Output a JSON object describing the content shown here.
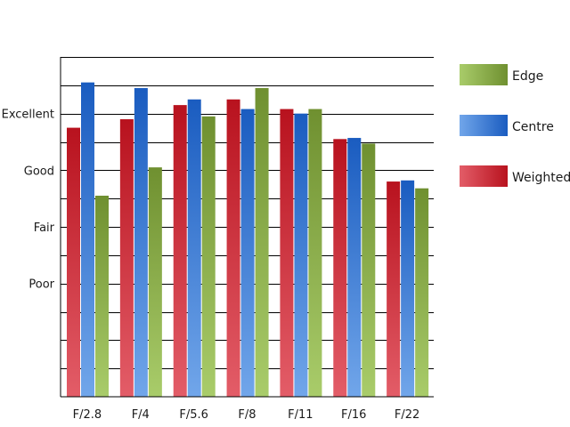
{
  "chart_data": {
    "type": "bar",
    "categories": [
      "F/2.8",
      "F/4",
      "F/5.6",
      "F/8",
      "F/11",
      "F/16",
      "F/22"
    ],
    "y_tick_labels": [
      {
        "value": 1,
        "label": "Poor"
      },
      {
        "value": 2,
        "label": "Fair"
      },
      {
        "value": 3,
        "label": "Good"
      },
      {
        "value": 4,
        "label": "Excellent"
      }
    ],
    "ylim": [
      -1,
      5
    ],
    "grid": true,
    "legend_position": "right",
    "series": [
      {
        "name": "Weighted",
        "values": [
          3.75,
          3.9,
          4.15,
          4.25,
          4.08,
          3.55,
          2.8
        ],
        "colors": [
          "#e35d68",
          "#b8121e"
        ]
      },
      {
        "name": "Centre",
        "values": [
          4.55,
          4.45,
          4.25,
          4.08,
          4.0,
          3.57,
          2.82
        ],
        "colors": [
          "#71a6ea",
          "#1a5cc0"
        ]
      },
      {
        "name": "Edge",
        "values": [
          2.55,
          3.05,
          3.95,
          4.45,
          4.08,
          3.47,
          2.68
        ],
        "colors": [
          "#a9cc6a",
          "#6f9030"
        ]
      }
    ],
    "legend_order": [
      "Edge",
      "Centre",
      "Weighted"
    ]
  }
}
